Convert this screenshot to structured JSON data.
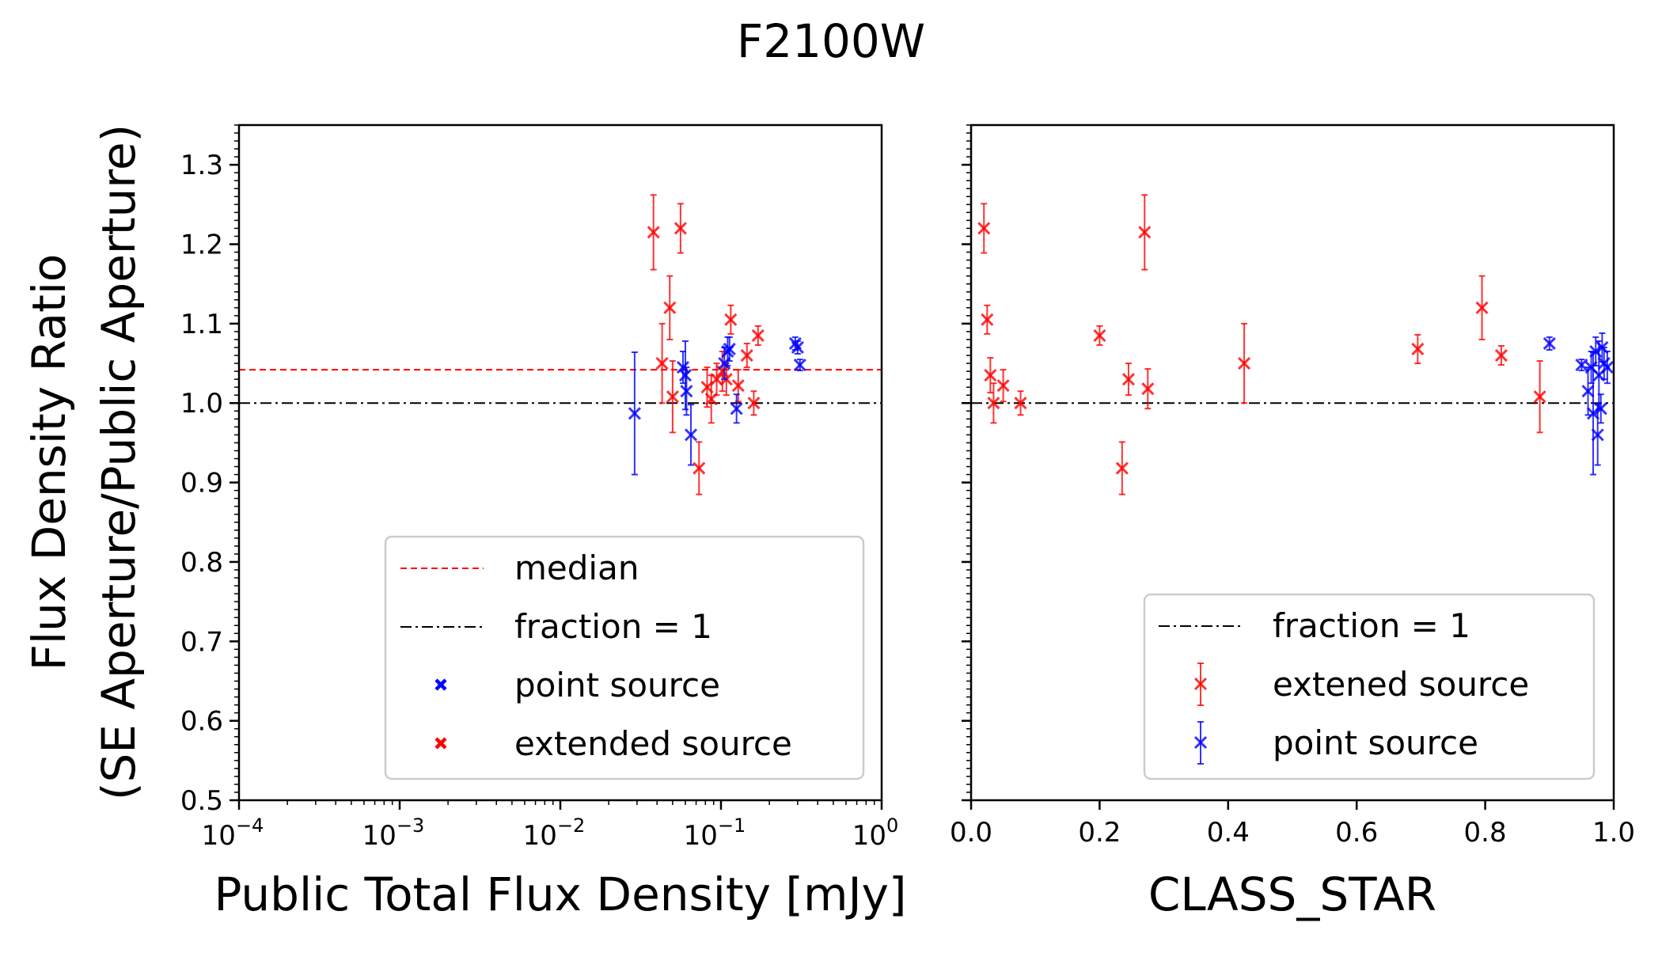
{
  "figure_title": "F2100W",
  "colors": {
    "extended": "#ff0000",
    "point": "#0000ff",
    "median": "#ff0000",
    "unity": "#000000"
  },
  "chart_data": [
    {
      "type": "scatter",
      "id": "left",
      "title": "",
      "xlabel": "Public Total Flux Density [mJy]",
      "ylabel_line1": "Flux Density Ratio",
      "ylabel_line2": "(SE Aperture/Public Aperture)",
      "xscale": "log",
      "xlim": [
        0.0001,
        1
      ],
      "ylim": [
        0.5,
        1.35
      ],
      "xtick_labels": [
        {
          "value": 0.0001,
          "base": "10",
          "exp": "−4"
        },
        {
          "value": 0.001,
          "base": "10",
          "exp": "−3"
        },
        {
          "value": 0.01,
          "base": "10",
          "exp": "−2"
        },
        {
          "value": 0.1,
          "base": "10",
          "exp": "−1"
        },
        {
          "value": 1,
          "base": "10",
          "exp": "0"
        }
      ],
      "yticks": [
        "0.5",
        "0.6",
        "0.7",
        "0.8",
        "0.9",
        "1.0",
        "1.1",
        "1.2",
        "1.3"
      ],
      "median": 1.042,
      "unity": 1.0,
      "legend": {
        "position": "lower-right",
        "median": "median",
        "unity": "fraction = 1",
        "point": "point source",
        "extended": "extended source"
      },
      "series": [
        {
          "name": "extended source",
          "points": [
            {
              "x": 0.038,
              "y": 1.215,
              "err": 0.047
            },
            {
              "x": 0.056,
              "y": 1.22,
              "err": 0.031
            },
            {
              "x": 0.048,
              "y": 1.12,
              "err": 0.04
            },
            {
              "x": 0.043,
              "y": 1.05,
              "err": 0.05
            },
            {
              "x": 0.05,
              "y": 1.008,
              "err": 0.045
            },
            {
              "x": 0.073,
              "y": 0.918,
              "err": 0.033
            },
            {
              "x": 0.082,
              "y": 1.02,
              "err": 0.025
            },
            {
              "x": 0.087,
              "y": 1.005,
              "err": 0.03
            },
            {
              "x": 0.094,
              "y": 1.03,
              "err": 0.02
            },
            {
              "x": 0.102,
              "y": 1.04,
              "err": 0.025
            },
            {
              "x": 0.108,
              "y": 1.03,
              "err": 0.02
            },
            {
              "x": 0.115,
              "y": 1.105,
              "err": 0.018
            },
            {
              "x": 0.128,
              "y": 1.022,
              "err": 0.02
            },
            {
              "x": 0.145,
              "y": 1.06,
              "err": 0.015
            },
            {
              "x": 0.16,
              "y": 1.0,
              "err": 0.015
            },
            {
              "x": 0.17,
              "y": 1.085,
              "err": 0.012
            }
          ]
        },
        {
          "name": "point source",
          "points": [
            {
              "x": 0.029,
              "y": 0.987,
              "err": 0.077
            },
            {
              "x": 0.058,
              "y": 1.045,
              "err": 0.02
            },
            {
              "x": 0.06,
              "y": 1.035,
              "err": 0.043
            },
            {
              "x": 0.061,
              "y": 1.015,
              "err": 0.03
            },
            {
              "x": 0.065,
              "y": 0.96,
              "err": 0.038
            },
            {
              "x": 0.105,
              "y": 1.05,
              "err": 0.02
            },
            {
              "x": 0.11,
              "y": 1.065,
              "err": 0.018
            },
            {
              "x": 0.113,
              "y": 1.068,
              "err": 0.015
            },
            {
              "x": 0.125,
              "y": 0.993,
              "err": 0.018
            },
            {
              "x": 0.29,
              "y": 1.075,
              "err": 0.008
            },
            {
              "x": 0.3,
              "y": 1.07,
              "err": 0.008
            },
            {
              "x": 0.31,
              "y": 1.048,
              "err": 0.007
            }
          ]
        }
      ]
    },
    {
      "type": "scatter",
      "id": "right",
      "title": "",
      "xlabel": "CLASS_STAR",
      "ylabel": "",
      "xscale": "linear",
      "xlim": [
        0.0,
        1.0
      ],
      "ylim": [
        0.5,
        1.35
      ],
      "xticks": [
        "0.0",
        "0.2",
        "0.4",
        "0.6",
        "0.8",
        "1.0"
      ],
      "unity": 1.0,
      "legend": {
        "position": "lower-right",
        "unity": "fraction = 1",
        "extended": "extened source",
        "point": "point source"
      },
      "series": [
        {
          "name": "extended source",
          "points": [
            {
              "x": 0.02,
              "y": 1.22,
              "err": 0.031
            },
            {
              "x": 0.025,
              "y": 1.105,
              "err": 0.018
            },
            {
              "x": 0.03,
              "y": 1.035,
              "err": 0.022
            },
            {
              "x": 0.035,
              "y": 1.0,
              "err": 0.025
            },
            {
              "x": 0.05,
              "y": 1.022,
              "err": 0.02
            },
            {
              "x": 0.077,
              "y": 1.0,
              "err": 0.015
            },
            {
              "x": 0.2,
              "y": 1.085,
              "err": 0.012
            },
            {
              "x": 0.235,
              "y": 0.918,
              "err": 0.033
            },
            {
              "x": 0.245,
              "y": 1.03,
              "err": 0.02
            },
            {
              "x": 0.27,
              "y": 1.215,
              "err": 0.047
            },
            {
              "x": 0.275,
              "y": 1.018,
              "err": 0.025
            },
            {
              "x": 0.425,
              "y": 1.05,
              "err": 0.05
            },
            {
              "x": 0.695,
              "y": 1.068,
              "err": 0.018
            },
            {
              "x": 0.795,
              "y": 1.12,
              "err": 0.04
            },
            {
              "x": 0.825,
              "y": 1.06,
              "err": 0.012
            },
            {
              "x": 0.885,
              "y": 1.008,
              "err": 0.045
            }
          ]
        },
        {
          "name": "point source",
          "points": [
            {
              "x": 0.9,
              "y": 1.075,
              "err": 0.008
            },
            {
              "x": 0.95,
              "y": 1.048,
              "err": 0.007
            },
            {
              "x": 0.96,
              "y": 1.015,
              "err": 0.03
            },
            {
              "x": 0.965,
              "y": 1.045,
              "err": 0.02
            },
            {
              "x": 0.968,
              "y": 0.987,
              "err": 0.077
            },
            {
              "x": 0.972,
              "y": 1.065,
              "err": 0.018
            },
            {
              "x": 0.975,
              "y": 0.96,
              "err": 0.038
            },
            {
              "x": 0.977,
              "y": 1.035,
              "err": 0.043
            },
            {
              "x": 0.98,
              "y": 0.993,
              "err": 0.018
            },
            {
              "x": 0.982,
              "y": 1.07,
              "err": 0.018
            },
            {
              "x": 0.985,
              "y": 1.05,
              "err": 0.02
            },
            {
              "x": 0.99,
              "y": 1.045,
              "err": 0.02
            }
          ]
        }
      ]
    }
  ]
}
